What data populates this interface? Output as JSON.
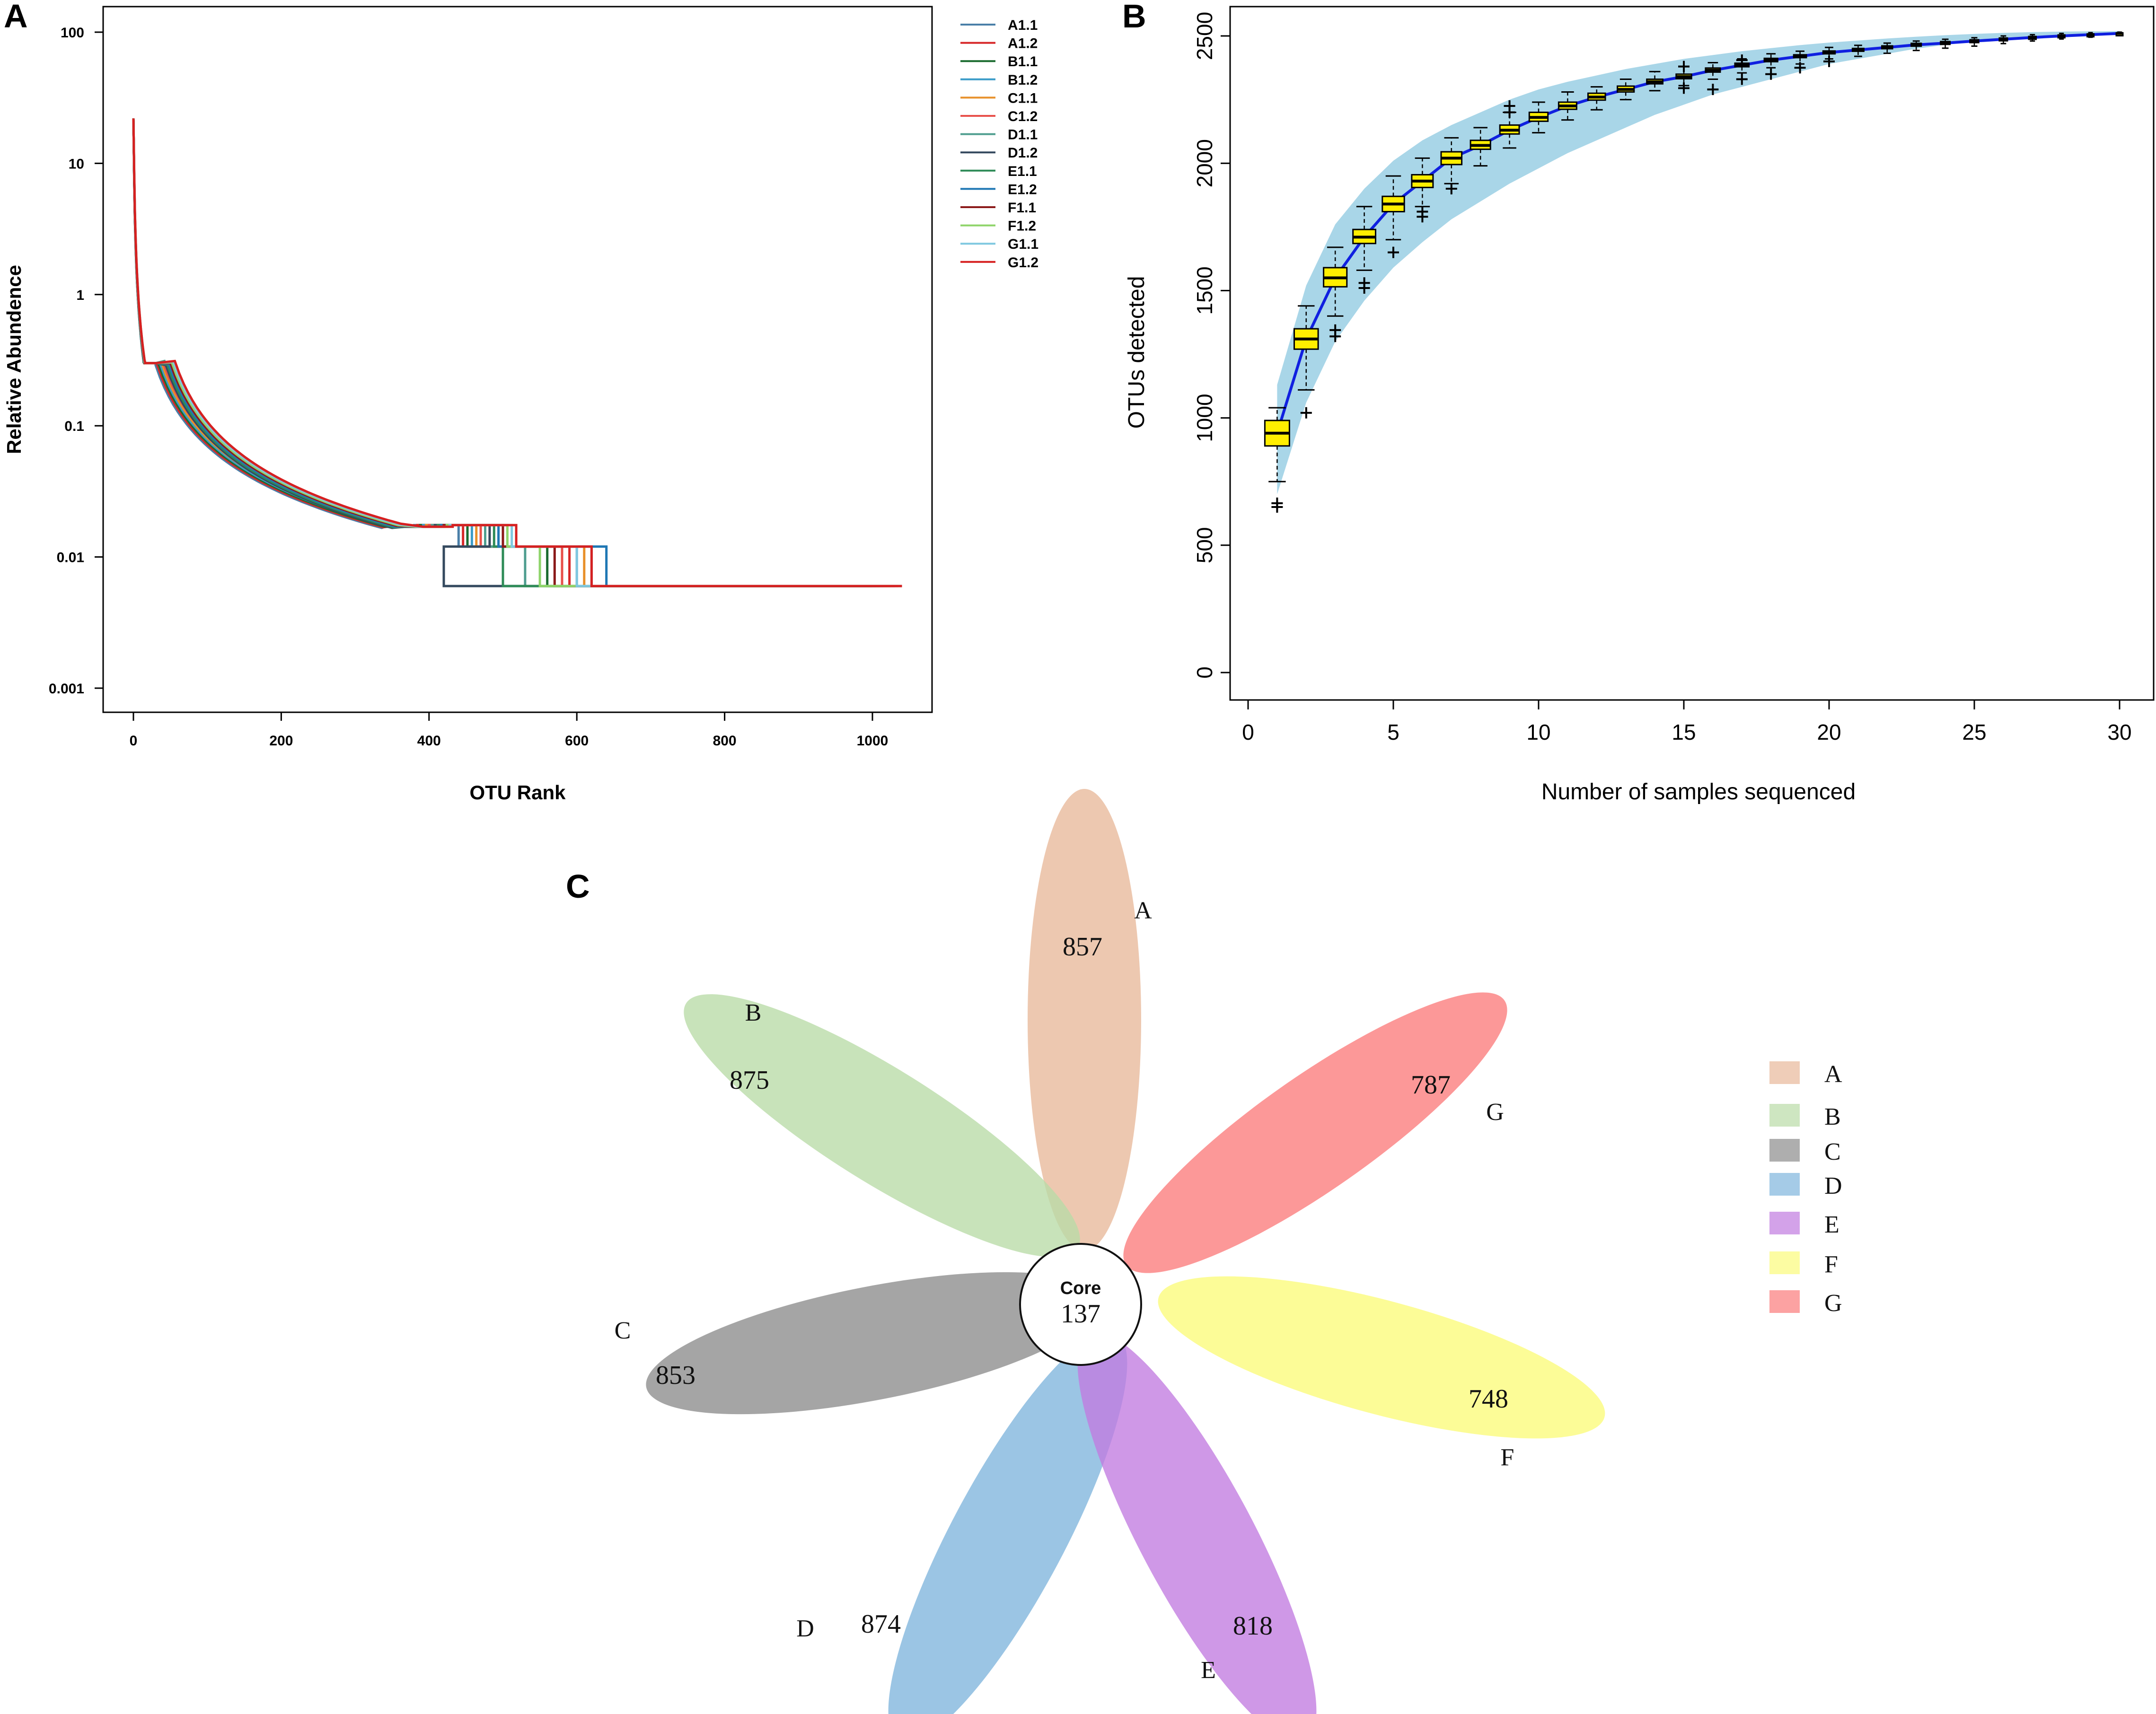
{
  "chart_data": [
    {
      "panel": "A",
      "type": "line",
      "xlabel": "OTU Rank",
      "ylabel": "Relative Abundence",
      "yscale": "log",
      "xlim": [
        0,
        1050
      ],
      "ylim": [
        0.001,
        100
      ],
      "xticks": [
        0,
        200,
        400,
        600,
        800,
        1000
      ],
      "xtick_labels": [
        "0",
        "200",
        "400",
        "600",
        "800",
        "1000"
      ],
      "yticks": [
        100,
        10,
        1,
        0.1,
        0.01,
        0.001
      ],
      "ytick_labels": [
        "100",
        "10",
        "1",
        "0.1",
        "0.01",
        "0.001"
      ],
      "legend_position": "right",
      "series": [
        {
          "name": "A1.1",
          "color": "#4a7fa8",
          "end": 1000,
          "drop": 600
        },
        {
          "name": "A1.2",
          "color": "#d62728",
          "end": 1030,
          "drop": 590
        },
        {
          "name": "B1.1",
          "color": "#1a6b2f",
          "end": 1000,
          "drop": 560
        },
        {
          "name": "B1.2",
          "color": "#3b9cc8",
          "end": 1010,
          "drop": 620
        },
        {
          "name": "C1.1",
          "color": "#e8902a",
          "end": 1020,
          "drop": 610
        },
        {
          "name": "C1.2",
          "color": "#e8504a",
          "end": 1035,
          "drop": 580
        },
        {
          "name": "D1.1",
          "color": "#4f9e8f",
          "end": 1000,
          "drop": 530
        },
        {
          "name": "D1.2",
          "color": "#34495e",
          "end": 1000,
          "drop": 420
        },
        {
          "name": "E1.1",
          "color": "#2e8b57",
          "end": 1005,
          "drop": 500
        },
        {
          "name": "E1.2",
          "color": "#1f77b4",
          "end": 1015,
          "drop": 640
        },
        {
          "name": "F1.1",
          "color": "#8b1a1a",
          "end": 1010,
          "drop": 570
        },
        {
          "name": "F1.2",
          "color": "#8fd46a",
          "end": 1025,
          "drop": 550
        },
        {
          "name": "G1.1",
          "color": "#7fc8e0",
          "end": 1040,
          "drop": 600
        },
        {
          "name": "G1.2",
          "color": "#d62020",
          "end": 1040,
          "drop": 620
        }
      ]
    },
    {
      "panel": "B",
      "type": "box",
      "xlabel": "Number of samples sequenced",
      "ylabel": "OTUs detected",
      "xlim": [
        0,
        30
      ],
      "ylim": [
        0,
        2500
      ],
      "xticks": [
        0,
        5,
        10,
        15,
        20,
        25,
        30
      ],
      "xtick_labels": [
        "0",
        "5",
        "10",
        "15",
        "20",
        "25",
        "30"
      ],
      "yticks": [
        0,
        500,
        1000,
        1500,
        2000,
        2500
      ],
      "ytick_labels": [
        "0",
        "500",
        "1000",
        "1500",
        "2000",
        "2500"
      ],
      "x": [
        1,
        2,
        3,
        4,
        5,
        6,
        7,
        8,
        9,
        10,
        11,
        12,
        13,
        14,
        15,
        16,
        17,
        18,
        19,
        20,
        21,
        22,
        23,
        24,
        25,
        26,
        27,
        28,
        29,
        30
      ],
      "median": [
        940,
        1310,
        1550,
        1710,
        1840,
        1930,
        2020,
        2070,
        2130,
        2180,
        2225,
        2260,
        2290,
        2320,
        2340,
        2365,
        2385,
        2405,
        2420,
        2435,
        2445,
        2455,
        2465,
        2472,
        2480,
        2487,
        2494,
        2500,
        2505,
        2510
      ],
      "q1": [
        890,
        1270,
        1515,
        1685,
        1810,
        1905,
        1995,
        2055,
        2115,
        2165,
        2212,
        2248,
        2280,
        2312,
        2332,
        2358,
        2379,
        2399,
        2415,
        2430,
        2440,
        2450,
        2461,
        2468,
        2476,
        2483,
        2490,
        2497,
        2502,
        2508
      ],
      "q3": [
        990,
        1350,
        1590,
        1740,
        1870,
        1955,
        2045,
        2090,
        2150,
        2200,
        2240,
        2275,
        2303,
        2330,
        2350,
        2374,
        2393,
        2412,
        2426,
        2441,
        2451,
        2461,
        2471,
        2478,
        2485,
        2492,
        2498,
        2504,
        2508,
        2512
      ],
      "whisker_low": [
        750,
        1110,
        1400,
        1580,
        1700,
        1830,
        1920,
        1990,
        2060,
        2120,
        2170,
        2210,
        2250,
        2285,
        2305,
        2330,
        2355,
        2375,
        2390,
        2410,
        2420,
        2432,
        2443,
        2452,
        2460,
        2470,
        2480,
        2488,
        2495,
        2505
      ],
      "whisker_high": [
        1040,
        1440,
        1670,
        1830,
        1950,
        2020,
        2100,
        2140,
        2200,
        2240,
        2280,
        2300,
        2330,
        2360,
        2380,
        2395,
        2410,
        2430,
        2440,
        2455,
        2463,
        2472,
        2480,
        2487,
        2493,
        2500,
        2505,
        2510,
        2513,
        2515
      ],
      "outliers": [
        [
          1,
          650
        ],
        [
          1,
          665
        ],
        [
          2,
          1020
        ],
        [
          3,
          1320
        ],
        [
          3,
          1345
        ],
        [
          4,
          1510
        ],
        [
          4,
          1530
        ],
        [
          5,
          1650
        ],
        [
          6,
          1790
        ],
        [
          6,
          1810
        ],
        [
          7,
          1900
        ],
        [
          9,
          2200
        ],
        [
          9,
          2225
        ],
        [
          15,
          2295
        ],
        [
          15,
          2380
        ],
        [
          16,
          2290
        ],
        [
          17,
          2330
        ],
        [
          17,
          2405
        ],
        [
          18,
          2350
        ],
        [
          19,
          2375
        ],
        [
          20,
          2400
        ]
      ],
      "band_low": [
        700,
        1060,
        1300,
        1460,
        1590,
        1690,
        1780,
        1850,
        1920,
        1980,
        2040,
        2090,
        2140,
        2190,
        2230,
        2270,
        2300,
        2330,
        2360,
        2390,
        2410,
        2430,
        2450,
        2465,
        2478,
        2488,
        2496,
        2503,
        2508,
        2512
      ],
      "band_high": [
        1130,
        1520,
        1760,
        1900,
        2010,
        2090,
        2150,
        2200,
        2250,
        2290,
        2320,
        2345,
        2370,
        2390,
        2410,
        2425,
        2440,
        2452,
        2464,
        2474,
        2482,
        2490,
        2497,
        2503,
        2508,
        2512,
        2515,
        2517,
        2518,
        2519
      ]
    },
    {
      "panel": "C",
      "type": "flower",
      "core_label": "Core",
      "core_value": "137",
      "petals": [
        {
          "name": "A",
          "value": "857",
          "color": "#e8b89a"
        },
        {
          "name": "B",
          "value": "875",
          "color": "#b9dba6"
        },
        {
          "name": "C",
          "value": "853",
          "color": "#8c8c8c"
        },
        {
          "name": "D",
          "value": "874",
          "color": "#7fb5dd"
        },
        {
          "name": "E",
          "value": "818",
          "color": "#c17be0"
        },
        {
          "name": "F",
          "value": "748",
          "color": "#fbfb7a"
        },
        {
          "name": "G",
          "value": "787",
          "color": "#fb7b7b"
        }
      ]
    }
  ]
}
